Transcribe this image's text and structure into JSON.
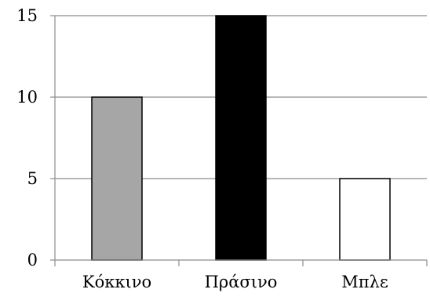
{
  "chart_data": {
    "type": "bar",
    "title": "",
    "xlabel": "",
    "ylabel": "",
    "categories": [
      "Κόκκινο",
      "Πράσινο",
      "Μπλε"
    ],
    "values": [
      10,
      15,
      5
    ],
    "colors": [
      "#a6a6a6",
      "#000000",
      "#ffffff"
    ],
    "ylim": [
      0,
      15
    ],
    "yticks": [
      0,
      5,
      10,
      15
    ],
    "grid": true,
    "legend": "none"
  }
}
